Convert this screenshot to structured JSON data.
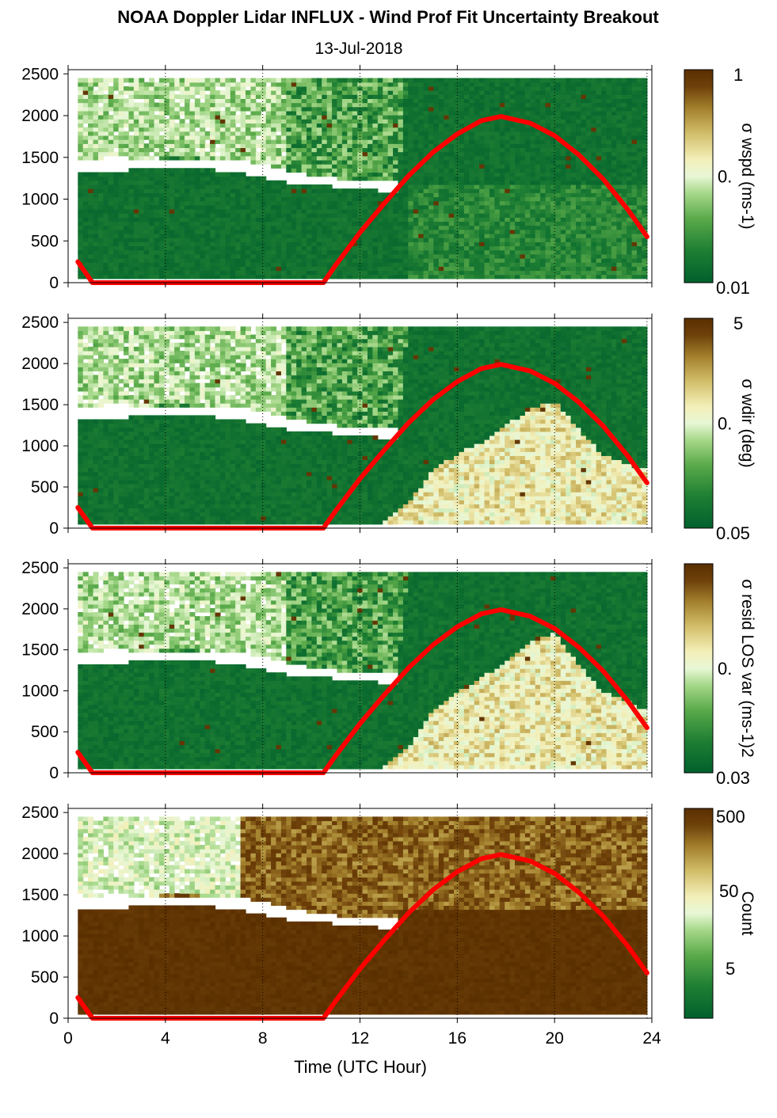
{
  "title": "NOAA Doppler Lidar INFLUX - Wind Prof Fit Uncertainty Breakout",
  "subtitle": "13-Jul-2018",
  "colors": {
    "sun_curve": "#ff0000",
    "colormap": [
      "#00602d",
      "#1e7e33",
      "#5aaa4a",
      "#a6d88a",
      "#e8f7d6",
      "#f3efb8",
      "#d2be6a",
      "#a27f2c",
      "#6e410a",
      "#5a2f00"
    ]
  },
  "chart_data": [
    {
      "type": "heatmap",
      "xlim": [
        0,
        24
      ],
      "ylim": [
        0,
        2550
      ],
      "yticks": [
        0,
        500,
        1000,
        1500,
        2000,
        2500
      ],
      "xgrid": [
        4,
        8,
        12,
        16,
        20
      ],
      "colorbar": {
        "label": "σ wspd (ms-1)",
        "ticks": [
          "1",
          "0.",
          "0.01"
        ],
        "scale": "log"
      },
      "features": {
        "boundary_layer_top_m": [
          1350,
          1350,
          1250,
          1100,
          900,
          500,
          1300
        ],
        "background_level": 0.1
      },
      "sun_curve": {
        "name": "solar elevation",
        "x": [
          0.4,
          1.0,
          10.5,
          11,
          12,
          13,
          14,
          15,
          16,
          17,
          17.8,
          19,
          20,
          21,
          22,
          23,
          23.8
        ],
        "y": [
          250,
          0,
          0,
          210,
          600,
          950,
          1280,
          1560,
          1780,
          1940,
          1990,
          1910,
          1760,
          1530,
          1240,
          880,
          550
        ]
      }
    },
    {
      "type": "heatmap",
      "xlim": [
        0,
        24
      ],
      "ylim": [
        0,
        2550
      ],
      "yticks": [
        0,
        500,
        1000,
        1500,
        2000,
        2500
      ],
      "xgrid": [
        4,
        8,
        12,
        16,
        20
      ],
      "colorbar": {
        "label": "σ wdir (deg)",
        "ticks": [
          "5",
          "0.",
          "0.05"
        ],
        "scale": "log"
      },
      "features": {
        "daytime_mixed_layer": "light",
        "mixed_layer_top_m": [
          0,
          300,
          800,
          1050,
          1250,
          1500,
          1300
        ]
      },
      "sun_curve": {
        "name": "solar elevation",
        "x": [
          0.4,
          1.0,
          10.5,
          11,
          12,
          13,
          14,
          15,
          16,
          17,
          17.8,
          19,
          20,
          21,
          22,
          23,
          23.8
        ],
        "y": [
          250,
          0,
          0,
          210,
          600,
          950,
          1280,
          1560,
          1780,
          1940,
          1990,
          1910,
          1760,
          1530,
          1240,
          880,
          550
        ]
      }
    },
    {
      "type": "heatmap",
      "xlim": [
        0,
        24
      ],
      "ylim": [
        0,
        2550
      ],
      "yticks": [
        0,
        500,
        1000,
        1500,
        2000,
        2500
      ],
      "xgrid": [
        4,
        8,
        12,
        16,
        20
      ],
      "colorbar": {
        "label": "σ resid LOS var (ms-1)2",
        "ticks": [
          "",
          "0.",
          "0.03"
        ],
        "scale": "log"
      },
      "features": {
        "daytime_mixed_layer": "light",
        "mixed_layer_top_m": [
          0,
          300,
          800,
          1050,
          1250,
          1650,
          1300
        ]
      },
      "sun_curve": {
        "name": "solar elevation",
        "x": [
          0.4,
          1.0,
          10.5,
          11,
          12,
          13,
          14,
          15,
          16,
          17,
          17.8,
          19,
          20,
          21,
          22,
          23,
          23.8
        ],
        "y": [
          250,
          0,
          0,
          210,
          600,
          950,
          1280,
          1560,
          1780,
          1940,
          1990,
          1910,
          1760,
          1530,
          1240,
          880,
          550
        ]
      }
    },
    {
      "type": "heatmap",
      "xlim": [
        0,
        24
      ],
      "ylim": [
        0,
        2550
      ],
      "yticks": [
        0,
        500,
        1000,
        1500,
        2000,
        2500
      ],
      "xticks": [
        0,
        4,
        8,
        12,
        16,
        20,
        24
      ],
      "xlabel": "Time (UTC Hour)",
      "xgrid": [
        4,
        8,
        12,
        16,
        20
      ],
      "colorbar": {
        "label": "Count",
        "ticks": [
          "500",
          "50",
          "5"
        ],
        "scale": "log"
      },
      "features": {
        "saturated_below_m": 1250,
        "background_level": "high"
      },
      "sun_curve": {
        "name": "solar elevation",
        "x": [
          0.4,
          1.0,
          10.5,
          11,
          12,
          13,
          14,
          15,
          16,
          17,
          17.8,
          19,
          20,
          21,
          22,
          23,
          23.8
        ],
        "y": [
          250,
          0,
          0,
          210,
          600,
          950,
          1280,
          1560,
          1780,
          1940,
          1990,
          1910,
          1760,
          1530,
          1240,
          880,
          550
        ]
      }
    }
  ]
}
